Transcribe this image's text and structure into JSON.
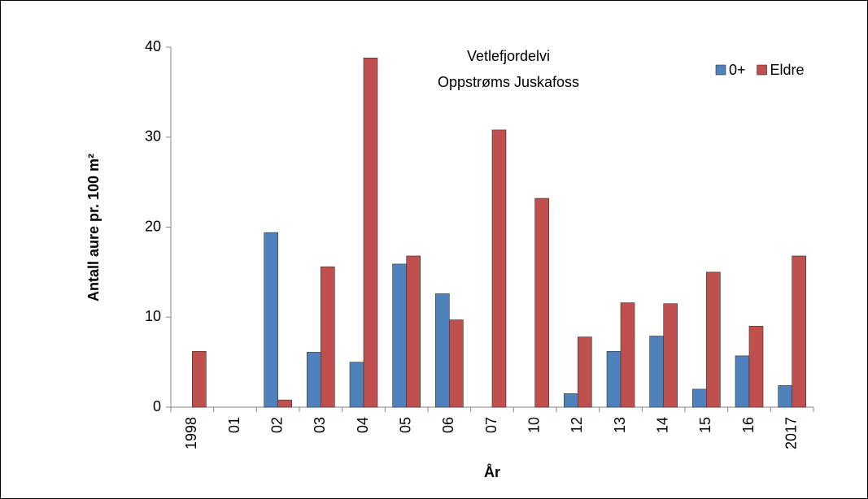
{
  "chart_data": {
    "type": "bar",
    "title": "Vetlefjordelvi",
    "subtitle": "Oppstrøms Juskafoss",
    "x_label": "År",
    "y_label": "Antall aure pr. 100 m²",
    "categories": [
      "1998",
      "01",
      "02",
      "03",
      "04",
      "05",
      "06",
      "07",
      "10",
      "12",
      "13",
      "14",
      "15",
      "16",
      "2017"
    ],
    "series": [
      {
        "name": "0+",
        "color": "#4f81bd",
        "values": [
          0,
          0,
          19.4,
          6.1,
          5.0,
          15.9,
          12.6,
          0,
          0,
          1.5,
          6.2,
          7.9,
          2.0,
          5.7,
          2.4
        ]
      },
      {
        "name": "Eldre",
        "color": "#c0504d",
        "values": [
          6.2,
          0,
          0.8,
          15.6,
          38.8,
          16.8,
          9.7,
          30.8,
          23.2,
          7.8,
          11.6,
          11.5,
          15.0,
          9.0,
          16.8
        ]
      }
    ],
    "ylim": [
      0,
      40
    ],
    "yticks": [
      0,
      10,
      20,
      30,
      40
    ],
    "grid": false,
    "legend": "top-right"
  }
}
